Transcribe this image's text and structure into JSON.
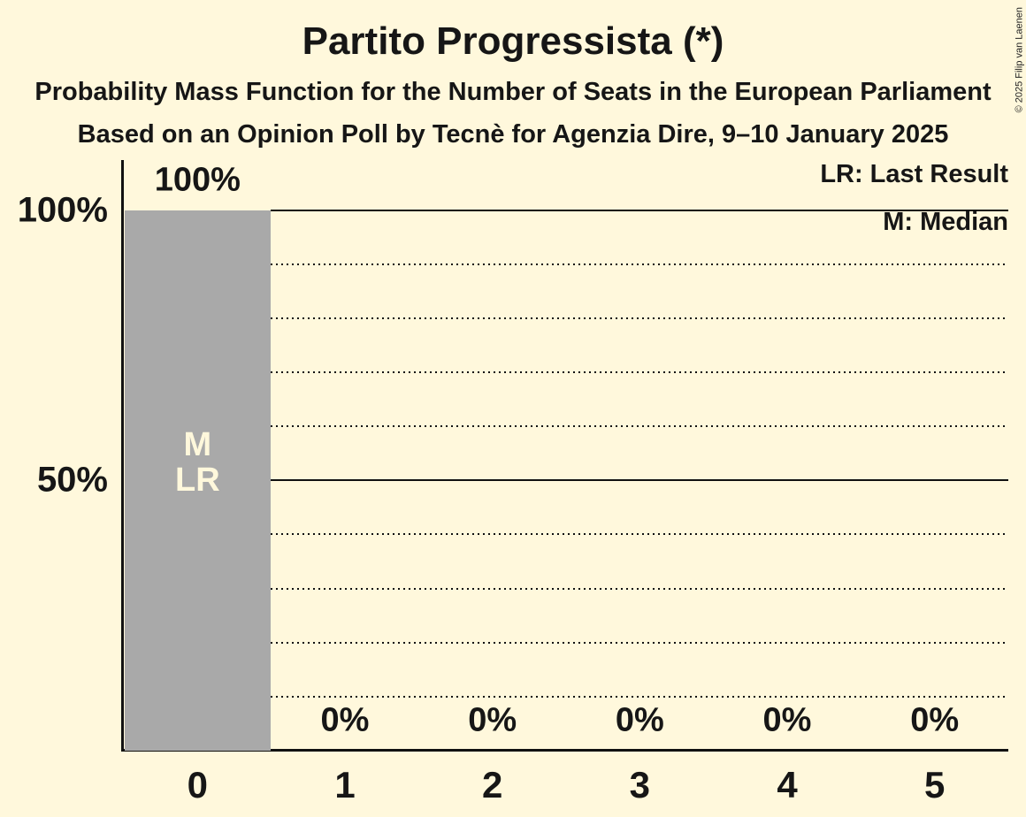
{
  "title": "Partito Progressista (*)",
  "subtitle": "Probability Mass Function for the Number of Seats in the European Parliament",
  "subtitle2": "Based on an Opinion Poll by Tecnè for Agenzia Dire, 9–10 January 2025",
  "copyright": "© 2025 Filip van Laenen",
  "legend": {
    "lr": "LR: Last Result",
    "m": "M: Median"
  },
  "colors": {
    "background": "#FFF8DC",
    "bar": "#A9A9A9",
    "text": "#161616",
    "line": "#111111",
    "bar_label": "#FFF8DC"
  },
  "chart_data": {
    "type": "bar",
    "title": "Partito Progressista (*)",
    "categories": [
      "0",
      "1",
      "2",
      "3",
      "4",
      "5"
    ],
    "values": [
      100,
      0,
      0,
      0,
      0,
      0
    ],
    "bar_value_labels": [
      "100%",
      "0%",
      "0%",
      "0%",
      "0%",
      "0%"
    ],
    "xlabel": "",
    "ylabel": "",
    "ylim": [
      0,
      100
    ],
    "grid_step": 10,
    "grid_style": "dotted horizontal lines every 10%, solid at 50% and 100%",
    "solid_gridlines": [
      50,
      100
    ],
    "yticks": [
      {
        "value": 100,
        "label": "100%"
      },
      {
        "value": 50,
        "label": "50%"
      }
    ],
    "markers": {
      "category_index": 0,
      "labels": [
        "M",
        "LR"
      ],
      "meaning": "Median and Last Result at 0 seats"
    },
    "legend_position": "top-right"
  }
}
